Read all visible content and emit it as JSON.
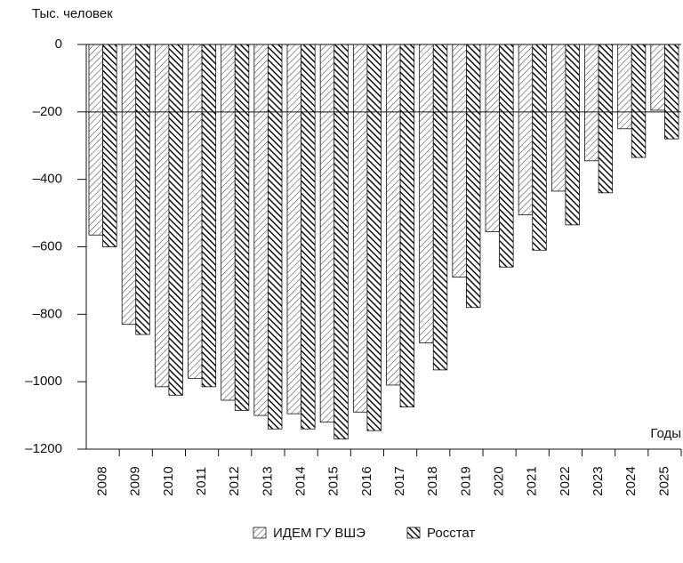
{
  "chart_data": {
    "type": "bar",
    "y_axis_label": "Тыс. человек",
    "x_axis_label": "Годы",
    "categories": [
      "2008",
      "2009",
      "2010",
      "2011",
      "2012",
      "2013",
      "2014",
      "2015",
      "2016",
      "2017",
      "2018",
      "2019",
      "2020",
      "2021",
      "2022",
      "2023",
      "2024",
      "2025"
    ],
    "series": [
      {
        "name": "ИДЕМ ГУ ВШЭ",
        "color": "#555555",
        "values": [
          -565,
          -830,
          -1015,
          -990,
          -1055,
          -1100,
          -1095,
          -1120,
          -1090,
          -1010,
          -885,
          -690,
          -555,
          -505,
          -435,
          -345,
          -250,
          -195
        ]
      },
      {
        "name": "Росстат",
        "color": "#111111",
        "values": [
          -600,
          -860,
          -1040,
          -1015,
          -1085,
          -1140,
          -1140,
          -1170,
          -1145,
          -1075,
          -965,
          -780,
          -660,
          -610,
          -535,
          -440,
          -335,
          -280
        ]
      }
    ],
    "ylim": [
      -1200,
      0
    ],
    "yticks": [
      0,
      {
        "value": -200,
        "label": "–200"
      },
      {
        "value": -400,
        "label": "–400"
      },
      {
        "value": -600,
        "label": "–600"
      },
      {
        "value": -800,
        "label": "–800"
      },
      {
        "value": -1000,
        "label": "–1000"
      },
      {
        "value": -1200,
        "label": "–1200"
      }
    ],
    "reference_line": -200,
    "legend": "bottom"
  }
}
